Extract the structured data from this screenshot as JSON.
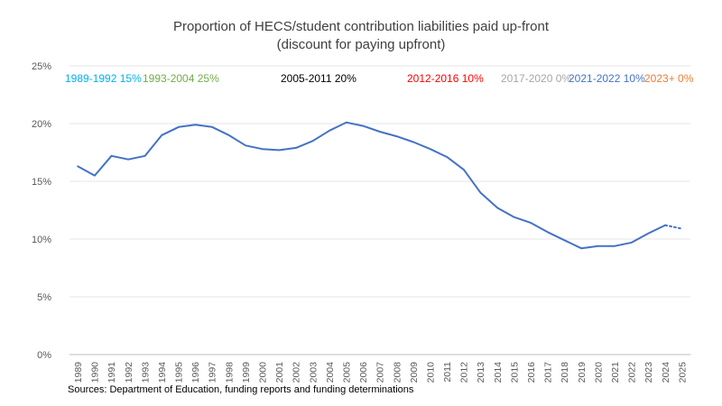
{
  "chart_data": {
    "type": "line",
    "title": "Proportion of HECS/student contribution liabilities paid up-front",
    "subtitle": "(discount for paying upfront)",
    "x": [
      "1989",
      "1990",
      "1991",
      "1992",
      "1993",
      "1994",
      "1995",
      "1996",
      "1997",
      "1998",
      "1999",
      "2000",
      "2001",
      "2002",
      "2003",
      "2004",
      "2005",
      "2006",
      "2007",
      "2008",
      "2009",
      "2010",
      "2011",
      "2012",
      "2013",
      "2014",
      "2015",
      "2016",
      "2017",
      "2018",
      "2019",
      "2020",
      "2021",
      "2022",
      "2023",
      "2024",
      "2025"
    ],
    "series": [
      {
        "values": [
          16.3,
          15.5,
          17.2,
          16.9,
          17.2,
          19.0,
          19.7,
          19.9,
          19.7,
          19.0,
          18.1,
          17.8,
          17.7,
          17.9,
          18.5,
          19.4,
          20.1,
          19.8,
          19.3,
          18.9,
          18.4,
          17.8,
          17.1,
          16.0,
          14.0,
          12.7,
          11.9,
          11.4,
          10.6,
          9.9,
          9.2,
          9.4,
          9.4,
          9.7,
          10.5,
          11.2,
          null
        ],
        "color": "#4472c4"
      },
      {
        "values": [
          null,
          null,
          null,
          null,
          null,
          null,
          null,
          null,
          null,
          null,
          null,
          null,
          null,
          null,
          null,
          null,
          null,
          null,
          null,
          null,
          null,
          null,
          null,
          null,
          null,
          null,
          null,
          null,
          null,
          null,
          null,
          null,
          null,
          null,
          null,
          11.2,
          10.9
        ],
        "color": "#4472c4",
        "style": "dotted"
      }
    ],
    "yticks": [
      "0%",
      "5%",
      "10%",
      "15%",
      "20%",
      "25%"
    ],
    "ylim": [
      0,
      25
    ],
    "grid": true,
    "annotations": [
      {
        "period": "1989-1992",
        "rate": "15%",
        "color": "#00b0f0"
      },
      {
        "period": "1993-2004",
        "rate": "25%",
        "color": "#70ad47"
      },
      {
        "period": "2005-2011",
        "rate": "20%",
        "color": "#000000"
      },
      {
        "period": "2012-2016",
        "rate": "10%",
        "color": "#ff0000"
      },
      {
        "period": "2017-2020",
        "rate": "0%",
        "color": "#a6a6a6"
      },
      {
        "period": "2021-2022",
        "rate": "10%",
        "color": "#4472c4"
      },
      {
        "period": "2023+",
        "rate": "0%",
        "color": "#ed7d31"
      }
    ]
  },
  "source": "Sources: Department of Education, funding reports and funding determinations"
}
